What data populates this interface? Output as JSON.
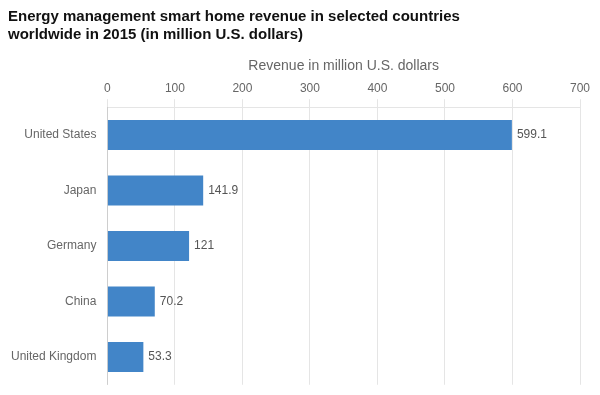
{
  "chart_data": {
    "type": "bar",
    "orientation": "horizontal",
    "title": "Energy management smart home revenue in selected countries",
    "subtitle": "worldwide in 2015 (in million U.S. dollars)",
    "xlabel": "Revenue in million U.S. dollars",
    "categories": [
      "United States",
      "Japan",
      "Germany",
      "China",
      "United Kingdom"
    ],
    "values": [
      599.1,
      141.9,
      121,
      70.2,
      53.3
    ],
    "color": "#4285c8",
    "xlim": [
      0,
      700
    ],
    "xticks": [
      0,
      100,
      200,
      300,
      400,
      500,
      600,
      700
    ],
    "grid": true,
    "data_labels": true
  }
}
